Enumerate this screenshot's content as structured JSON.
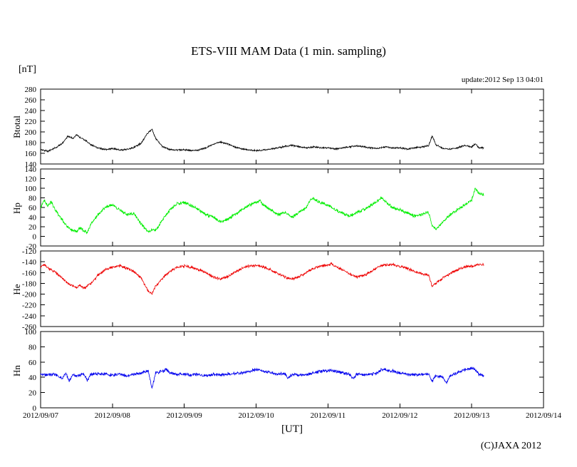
{
  "title": "ETS-VIII MAM Data (1 min. sampling)",
  "unit_label": "[nT]",
  "x_axis_label": "[UT]",
  "update_text": "update:2012 Sep 13 04:01",
  "copyright": "(C)JAXA 2012",
  "x_axis": {
    "xlim": [
      7,
      14
    ],
    "tick_labels": [
      "2012/09/07",
      "2012/09/08",
      "2012/09/09",
      "2012/09/10",
      "2012/09/11",
      "2012/09/12",
      "2012/09/13",
      "2012/09/14"
    ],
    "x_units": "day of September 2012 (UT)"
  },
  "chart_data": [
    {
      "type": "line",
      "panel": "Btotal",
      "color": "#000000",
      "ylim": [
        140,
        280
      ],
      "yticks": [
        140,
        160,
        180,
        200,
        220,
        240,
        260,
        280
      ],
      "noise": 1.8,
      "x": [
        7.0,
        7.1,
        7.2,
        7.3,
        7.38,
        7.45,
        7.5,
        7.55,
        7.62,
        7.7,
        7.8,
        7.9,
        8.0,
        8.1,
        8.2,
        8.3,
        8.4,
        8.48,
        8.55,
        8.6,
        8.7,
        8.8,
        8.9,
        9.0,
        9.1,
        9.2,
        9.3,
        9.4,
        9.5,
        9.6,
        9.7,
        9.8,
        9.9,
        10.0,
        10.1,
        10.2,
        10.3,
        10.4,
        10.5,
        10.6,
        10.7,
        10.8,
        10.9,
        11.0,
        11.1,
        11.2,
        11.3,
        11.4,
        11.5,
        11.6,
        11.7,
        11.8,
        11.9,
        12.0,
        12.1,
        12.2,
        12.3,
        12.4,
        12.45,
        12.5,
        12.6,
        12.7,
        12.8,
        12.9,
        13.0,
        13.05,
        13.1,
        13.17
      ],
      "values": [
        167,
        164,
        170,
        178,
        192,
        188,
        195,
        190,
        184,
        176,
        170,
        167,
        169,
        166,
        167,
        171,
        179,
        196,
        205,
        188,
        172,
        167,
        166,
        167,
        165,
        166,
        170,
        177,
        181,
        178,
        172,
        168,
        166,
        165,
        166,
        168,
        170,
        173,
        175,
        172,
        170,
        172,
        170,
        170,
        168,
        170,
        172,
        174,
        172,
        170,
        169,
        172,
        170,
        170,
        168,
        170,
        172,
        174,
        193,
        176,
        169,
        168,
        170,
        175,
        172,
        178,
        170,
        170
      ]
    },
    {
      "type": "line",
      "panel": "Hp",
      "color": "#00ee00",
      "ylim": [
        -20,
        140
      ],
      "yticks": [
        -20,
        0,
        20,
        40,
        60,
        80,
        100,
        120,
        140
      ],
      "noise": 4,
      "x": [
        7.0,
        7.05,
        7.1,
        7.15,
        7.2,
        7.3,
        7.4,
        7.5,
        7.55,
        7.6,
        7.65,
        7.7,
        7.8,
        7.9,
        8.0,
        8.05,
        8.1,
        8.2,
        8.3,
        8.4,
        8.5,
        8.55,
        8.6,
        8.7,
        8.8,
        8.9,
        9.0,
        9.1,
        9.2,
        9.3,
        9.4,
        9.5,
        9.6,
        9.7,
        9.8,
        9.9,
        10.0,
        10.05,
        10.1,
        10.2,
        10.3,
        10.4,
        10.5,
        10.6,
        10.7,
        10.75,
        10.8,
        10.9,
        11.0,
        11.1,
        11.2,
        11.3,
        11.4,
        11.5,
        11.6,
        11.7,
        11.75,
        11.8,
        11.9,
        12.0,
        12.1,
        12.2,
        12.3,
        12.4,
        12.45,
        12.5,
        12.6,
        12.7,
        12.8,
        12.9,
        13.0,
        13.05,
        13.1,
        13.17
      ],
      "values": [
        60,
        75,
        63,
        72,
        55,
        35,
        15,
        10,
        18,
        12,
        8,
        25,
        45,
        60,
        65,
        60,
        55,
        45,
        48,
        25,
        10,
        15,
        12,
        35,
        55,
        68,
        70,
        65,
        55,
        45,
        40,
        30,
        35,
        45,
        55,
        65,
        70,
        75,
        65,
        55,
        45,
        50,
        40,
        50,
        60,
        75,
        78,
        70,
        65,
        55,
        48,
        42,
        50,
        55,
        65,
        75,
        80,
        72,
        60,
        55,
        48,
        42,
        45,
        50,
        20,
        15,
        30,
        45,
        55,
        65,
        75,
        100,
        90,
        85
      ]
    },
    {
      "type": "line",
      "panel": "He",
      "color": "#ee0000",
      "ylim": [
        -260,
        -120
      ],
      "yticks": [
        -260,
        -240,
        -220,
        -200,
        -180,
        -160,
        -140,
        -120
      ],
      "noise": 3,
      "x": [
        7.0,
        7.05,
        7.1,
        7.2,
        7.3,
        7.4,
        7.5,
        7.55,
        7.6,
        7.7,
        7.8,
        7.9,
        8.0,
        8.1,
        8.2,
        8.3,
        8.4,
        8.5,
        8.55,
        8.6,
        8.7,
        8.8,
        8.9,
        9.0,
        9.1,
        9.2,
        9.3,
        9.4,
        9.5,
        9.6,
        9.7,
        9.8,
        9.9,
        10.0,
        10.1,
        10.2,
        10.3,
        10.4,
        10.5,
        10.6,
        10.7,
        10.8,
        10.9,
        11.0,
        11.05,
        11.1,
        11.2,
        11.3,
        11.4,
        11.5,
        11.6,
        11.7,
        11.8,
        11.9,
        12.0,
        12.1,
        12.2,
        12.3,
        12.4,
        12.45,
        12.5,
        12.6,
        12.7,
        12.8,
        12.9,
        13.0,
        13.1,
        13.17
      ],
      "values": [
        -150,
        -145,
        -152,
        -158,
        -170,
        -182,
        -188,
        -183,
        -190,
        -180,
        -165,
        -155,
        -150,
        -148,
        -152,
        -158,
        -170,
        -195,
        -200,
        -185,
        -170,
        -158,
        -150,
        -148,
        -150,
        -155,
        -160,
        -168,
        -172,
        -168,
        -160,
        -152,
        -148,
        -147,
        -150,
        -155,
        -162,
        -168,
        -172,
        -168,
        -160,
        -152,
        -148,
        -146,
        -143,
        -148,
        -155,
        -162,
        -168,
        -165,
        -158,
        -150,
        -146,
        -145,
        -148,
        -152,
        -158,
        -162,
        -165,
        -185,
        -180,
        -170,
        -162,
        -155,
        -150,
        -148,
        -145,
        -145
      ]
    },
    {
      "type": "line",
      "panel": "Hn",
      "color": "#0000ee",
      "ylim": [
        0,
        100
      ],
      "yticks": [
        0,
        20,
        40,
        60,
        80,
        100
      ],
      "noise": 2.5,
      "x": [
        7.0,
        7.1,
        7.2,
        7.3,
        7.35,
        7.4,
        7.45,
        7.5,
        7.6,
        7.65,
        7.7,
        7.8,
        7.9,
        8.0,
        8.1,
        8.2,
        8.3,
        8.4,
        8.5,
        8.55,
        8.6,
        8.7,
        8.75,
        8.8,
        8.9,
        9.0,
        9.1,
        9.2,
        9.3,
        9.4,
        9.5,
        9.6,
        9.7,
        9.8,
        9.9,
        10.0,
        10.1,
        10.2,
        10.3,
        10.4,
        10.45,
        10.5,
        10.6,
        10.7,
        10.8,
        10.9,
        11.0,
        11.1,
        11.2,
        11.3,
        11.35,
        11.4,
        11.5,
        11.6,
        11.7,
        11.75,
        11.8,
        11.9,
        12.0,
        12.1,
        12.2,
        12.3,
        12.4,
        12.45,
        12.5,
        12.6,
        12.65,
        12.7,
        12.8,
        12.9,
        13.0,
        13.05,
        13.1,
        13.17
      ],
      "values": [
        44,
        43,
        44,
        38,
        45,
        35,
        44,
        42,
        44,
        36,
        44,
        45,
        44,
        43,
        44,
        42,
        44,
        46,
        48,
        25,
        46,
        48,
        50,
        46,
        44,
        44,
        43,
        44,
        42,
        44,
        43,
        44,
        45,
        46,
        48,
        50,
        48,
        46,
        44,
        45,
        38,
        44,
        43,
        44,
        46,
        48,
        49,
        48,
        46,
        44,
        38,
        44,
        43,
        44,
        46,
        50,
        50,
        48,
        46,
        44,
        43,
        44,
        45,
        35,
        42,
        40,
        33,
        42,
        46,
        50,
        52,
        50,
        44,
        42
      ]
    }
  ]
}
